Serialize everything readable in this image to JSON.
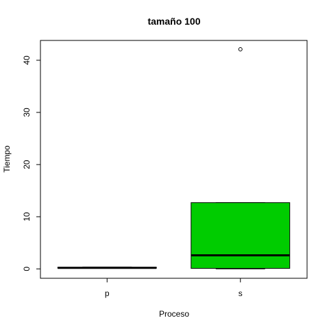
{
  "chart_data": {
    "type": "boxplot",
    "title": "tamaño  100",
    "xlabel": "Proceso",
    "ylabel": "Tiempo",
    "ylim": [
      -1.8,
      43.8
    ],
    "yticks": [
      0,
      10,
      20,
      30,
      40
    ],
    "grid": false,
    "legend": "none",
    "categories": [
      "p",
      "s"
    ],
    "boxes": [
      {
        "category": "p",
        "min": 0.1,
        "q1": 0.15,
        "median": 0.2,
        "q3": 0.3,
        "max": 0.35,
        "outliers": [],
        "color": "#000000"
      },
      {
        "category": "s",
        "min": 0.0,
        "q1": 0.1,
        "median": 2.6,
        "q3": 12.7,
        "max": 12.7,
        "outliers": [
          42.1
        ],
        "color": "#00CC00"
      }
    ]
  }
}
